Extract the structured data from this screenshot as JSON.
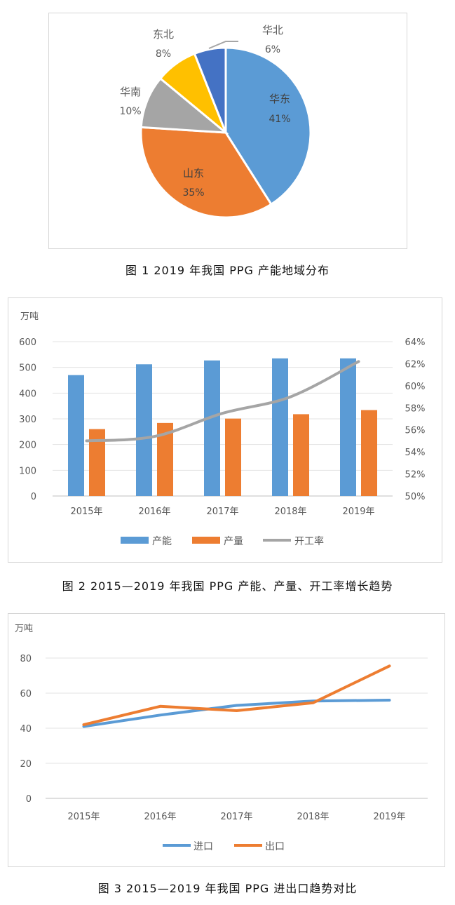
{
  "captions": {
    "fig1": "图 1   2019 年我国 PPG 产能地域分布",
    "fig2": "图 2  2015—2019 年我国 PPG 产能、产量、开工率增长趋势",
    "fig3": "图 3  2015—2019 年我国 PPG 进出口趋势对比"
  },
  "chart_data": [
    {
      "type": "pie",
      "title": "",
      "slices": [
        {
          "label": "华东",
          "value": 41,
          "pct": "41%",
          "color": "#5b9bd5"
        },
        {
          "label": "山东",
          "value": 35,
          "pct": "35%",
          "color": "#ed7d31"
        },
        {
          "label": "华南",
          "value": 10,
          "pct": "10%",
          "color": "#a5a5a5"
        },
        {
          "label": "东北",
          "value": 8,
          "pct": "8%",
          "color": "#ffc000"
        },
        {
          "label": "华北",
          "value": 6,
          "pct": "6%",
          "color": "#4472c4"
        }
      ]
    },
    {
      "type": "bar",
      "unit_left": "万吨",
      "categories": [
        "2015年",
        "2016年",
        "2017年",
        "2018年",
        "2019年"
      ],
      "ylim": [
        0,
        600
      ],
      "y_ticks": [
        "0",
        "100",
        "200",
        "300",
        "400",
        "500",
        "600"
      ],
      "y2lim": [
        50,
        64
      ],
      "y2_ticks": [
        "50%",
        "52%",
        "54%",
        "56%",
        "58%",
        "60%",
        "62%",
        "64%"
      ],
      "series": [
        {
          "name": "产能",
          "type": "bar",
          "axis": "left",
          "color": "#5b9bd5",
          "values": [
            470,
            512,
            527,
            535,
            535
          ]
        },
        {
          "name": "产量",
          "type": "bar",
          "axis": "left",
          "color": "#ed7d31",
          "values": [
            260,
            284,
            301,
            318,
            334
          ]
        },
        {
          "name": "开工率",
          "type": "line",
          "axis": "right",
          "color": "#a5a5a5",
          "values": [
            55.0,
            55.4,
            57.5,
            59.0,
            62.2
          ]
        }
      ],
      "grid": true,
      "legend": "bottom"
    },
    {
      "type": "line",
      "unit_left": "万吨",
      "categories": [
        "2015年",
        "2016年",
        "2017年",
        "2018年",
        "2019年"
      ],
      "ylim": [
        0,
        80
      ],
      "y_ticks": [
        "0",
        "20",
        "40",
        "60",
        "80"
      ],
      "series": [
        {
          "name": "进口",
          "color": "#5b9bd5",
          "values": [
            41,
            47.5,
            53,
            55.5,
            56
          ]
        },
        {
          "name": "出口",
          "color": "#ed7d31",
          "values": [
            42,
            52.5,
            50,
            54.5,
            75.5
          ]
        }
      ],
      "grid": true,
      "legend": "bottom"
    }
  ]
}
